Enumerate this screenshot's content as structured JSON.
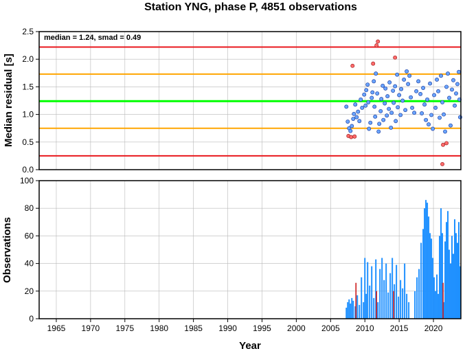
{
  "title": "Station YNG, phase P, 4851 observations",
  "colors": {
    "upper_limit": "#e8171c",
    "warn": "#ffa500",
    "median": "#00ff00",
    "inlier": "#6aa6ff",
    "outlier": "#ff6b6b",
    "bars": "#1e90ff",
    "bars_highlight": "#cc1a1a"
  },
  "chart_data": [
    {
      "type": "scatter",
      "annotation": "median = 1.24, smad = 0.49",
      "ylabel": "Median residual [s]",
      "xlim": [
        1962.5,
        2024.0
      ],
      "ylim": [
        0.0,
        2.5
      ],
      "yticks": [
        "0.0",
        "0.5",
        "1.0",
        "1.5",
        "2.0",
        "2.5"
      ],
      "grid": true,
      "reference_lines": [
        {
          "kind": "median",
          "y": 1.24
        },
        {
          "kind": "1-sigma",
          "y": 0.75
        },
        {
          "kind": "1-sigma",
          "y": 1.73
        },
        {
          "kind": "2-sigma",
          "y": 0.25
        },
        {
          "kind": "2-sigma",
          "y": 2.22
        }
      ],
      "outliers": [
        [
          2007.6,
          0.61
        ],
        [
          2008.0,
          0.59
        ],
        [
          2008.2,
          1.88
        ],
        [
          2008.5,
          0.6
        ],
        [
          2011.2,
          1.92
        ],
        [
          2011.7,
          2.25
        ],
        [
          2011.9,
          2.32
        ],
        [
          2014.4,
          2.03
        ],
        [
          2021.3,
          0.1
        ],
        [
          2021.4,
          0.45
        ],
        [
          2021.9,
          0.48
        ]
      ],
      "points": [
        [
          2007.3,
          1.14
        ],
        [
          2007.5,
          0.87
        ],
        [
          2007.7,
          0.75
        ],
        [
          2007.9,
          0.7
        ],
        [
          2008.1,
          0.79
        ],
        [
          2008.3,
          0.92
        ],
        [
          2008.4,
          1.01
        ],
        [
          2008.6,
          1.18
        ],
        [
          2008.8,
          0.95
        ],
        [
          2009.0,
          1.05
        ],
        [
          2009.2,
          0.88
        ],
        [
          2009.4,
          1.27
        ],
        [
          2009.6,
          1.12
        ],
        [
          2009.9,
          1.36
        ],
        [
          2010.1,
          1.16
        ],
        [
          2010.2,
          1.44
        ],
        [
          2010.4,
          1.54
        ],
        [
          2010.5,
          1.22
        ],
        [
          2010.6,
          0.74
        ],
        [
          2010.8,
          0.85
        ],
        [
          2011.0,
          1.3
        ],
        [
          2011.1,
          1.4
        ],
        [
          2011.3,
          1.6
        ],
        [
          2011.4,
          1.14
        ],
        [
          2011.5,
          0.96
        ],
        [
          2011.6,
          1.74
        ],
        [
          2011.8,
          1.38
        ],
        [
          2012.0,
          0.69
        ],
        [
          2012.1,
          0.83
        ],
        [
          2012.3,
          1.06
        ],
        [
          2012.4,
          1.28
        ],
        [
          2012.6,
          1.52
        ],
        [
          2012.7,
          0.9
        ],
        [
          2012.9,
          1.2
        ],
        [
          2013.0,
          1.47
        ],
        [
          2013.2,
          0.98
        ],
        [
          2013.3,
          1.33
        ],
        [
          2013.5,
          1.1
        ],
        [
          2013.6,
          1.58
        ],
        [
          2013.8,
          0.76
        ],
        [
          2013.9,
          1.03
        ],
        [
          2014.1,
          1.43
        ],
        [
          2014.2,
          1.21
        ],
        [
          2014.4,
          1.51
        ],
        [
          2014.5,
          0.88
        ],
        [
          2014.7,
          1.72
        ],
        [
          2014.8,
          1.13
        ],
        [
          2015.0,
          1.35
        ],
        [
          2015.2,
          0.99
        ],
        [
          2015.3,
          1.46
        ],
        [
          2015.5,
          1.25
        ],
        [
          2015.7,
          1.63
        ],
        [
          2015.9,
          1.08
        ],
        [
          2016.1,
          1.78
        ],
        [
          2016.3,
          1.55
        ],
        [
          2016.5,
          1.7
        ],
        [
          2016.7,
          1.31
        ],
        [
          2016.9,
          1.12
        ],
        [
          2017.2,
          1.03
        ],
        [
          2017.5,
          1.42
        ],
        [
          2017.8,
          1.6
        ],
        [
          2018.1,
          1.37
        ],
        [
          2018.3,
          1.02
        ],
        [
          2018.5,
          1.48
        ],
        [
          2018.7,
          1.18
        ],
        [
          2018.9,
          0.9
        ],
        [
          2019.1,
          1.27
        ],
        [
          2019.3,
          0.82
        ],
        [
          2019.5,
          1.56
        ],
        [
          2019.7,
          0.99
        ],
        [
          2019.9,
          0.74
        ],
        [
          2020.1,
          1.35
        ],
        [
          2020.3,
          1.12
        ],
        [
          2020.5,
          1.63
        ],
        [
          2020.7,
          1.42
        ],
        [
          2020.9,
          0.94
        ],
        [
          2021.1,
          1.7
        ],
        [
          2021.3,
          1.22
        ],
        [
          2021.5,
          1.0
        ],
        [
          2021.7,
          0.69
        ],
        [
          2021.9,
          1.5
        ],
        [
          2022.1,
          1.74
        ],
        [
          2022.3,
          1.3
        ],
        [
          2022.5,
          0.8
        ],
        [
          2022.7,
          1.45
        ],
        [
          2022.9,
          1.62
        ],
        [
          2023.1,
          1.16
        ],
        [
          2023.3,
          1.38
        ],
        [
          2023.5,
          1.55
        ],
        [
          2023.7,
          1.77
        ],
        [
          2023.9,
          0.95
        ],
        [
          2023.8,
          1.27
        ]
      ]
    },
    {
      "type": "bar",
      "xlabel": "Year",
      "ylabel": "Observations",
      "xlim": [
        1962.5,
        2024.0
      ],
      "ylim": [
        0,
        100
      ],
      "xticks": [
        "1965",
        "1970",
        "1975",
        "1980",
        "1985",
        "1990",
        "1995",
        "2000",
        "2005",
        "2010",
        "2015",
        "2020"
      ],
      "yticks": [
        "0",
        "20",
        "40",
        "60",
        "80",
        "100"
      ],
      "grid": true,
      "series": [
        {
          "values": [
            [
              2007.3,
              8
            ],
            [
              2007.5,
              12
            ],
            [
              2007.7,
              14
            ],
            [
              2007.9,
              11
            ],
            [
              2008.1,
              15
            ],
            [
              2008.3,
              13
            ],
            [
              2008.6,
              9
            ],
            [
              2008.9,
              17
            ],
            [
              2009.2,
              10
            ],
            [
              2009.5,
              30
            ],
            [
              2009.8,
              12
            ],
            [
              2010.0,
              44
            ],
            [
              2010.2,
              18
            ],
            [
              2010.4,
              41
            ],
            [
              2010.7,
              24
            ],
            [
              2011.0,
              38
            ],
            [
              2011.3,
              15
            ],
            [
              2011.6,
              43
            ],
            [
              2011.9,
              12
            ],
            [
              2012.2,
              36
            ],
            [
              2012.5,
              44
            ],
            [
              2012.8,
              28
            ],
            [
              2013.1,
              40
            ],
            [
              2013.4,
              19
            ],
            [
              2013.7,
              33
            ],
            [
              2014.0,
              44
            ],
            [
              2014.3,
              25
            ],
            [
              2014.6,
              39
            ],
            [
              2014.9,
              16
            ],
            [
              2015.2,
              28
            ],
            [
              2015.5,
              22
            ],
            [
              2015.8,
              40
            ],
            [
              2016.1,
              18
            ],
            [
              2016.4,
              12
            ],
            [
              2017.3,
              20
            ],
            [
              2017.6,
              30
            ],
            [
              2017.9,
              36
            ],
            [
              2018.2,
              55
            ],
            [
              2018.5,
              65
            ],
            [
              2018.7,
              80
            ],
            [
              2018.9,
              86
            ],
            [
              2019.1,
              84
            ],
            [
              2019.3,
              74
            ],
            [
              2019.5,
              62
            ],
            [
              2019.7,
              58
            ],
            [
              2019.9,
              44
            ],
            [
              2020.1,
              30
            ],
            [
              2020.3,
              20
            ],
            [
              2020.5,
              32
            ],
            [
              2020.7,
              18
            ],
            [
              2020.9,
              60
            ],
            [
              2021.1,
              80
            ],
            [
              2021.3,
              62
            ],
            [
              2021.5,
              12
            ],
            [
              2021.7,
              56
            ],
            [
              2021.9,
              70
            ],
            [
              2022.1,
              78
            ],
            [
              2022.3,
              50
            ],
            [
              2022.5,
              40
            ],
            [
              2022.7,
              60
            ],
            [
              2022.9,
              47
            ],
            [
              2023.1,
              72
            ],
            [
              2023.3,
              62
            ],
            [
              2023.5,
              55
            ],
            [
              2023.7,
              70
            ],
            [
              2023.9,
              38
            ]
          ]
        },
        {
          "values": [
            [
              2008.7,
              26
            ],
            [
              2011.7,
              20
            ],
            [
              2014.2,
              20
            ],
            [
              2021.4,
              26
            ]
          ]
        }
      ]
    }
  ]
}
